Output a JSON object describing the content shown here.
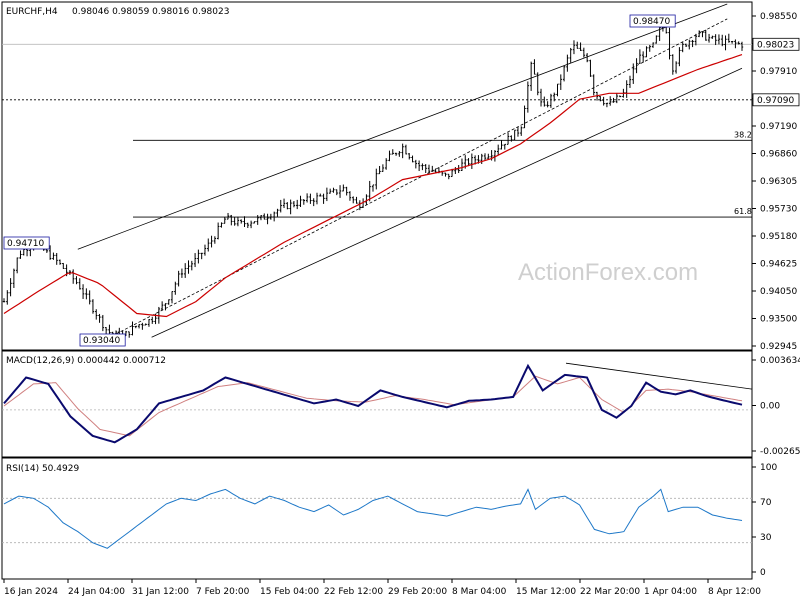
{
  "header": {
    "symbol_tf": "EURCHF,H4",
    "ohlc": "0.98046 0.98059 0.98016 0.98023"
  },
  "watermark": "ActionForex.com",
  "colors": {
    "candles": "#000000",
    "ma": "#cc0000",
    "macd_main": "#0a0a6e",
    "macd_signal": "#d08080",
    "rsi": "#1e78c8",
    "grid": "#b0b0b0",
    "frame": "#000000"
  },
  "chart_data": [
    {
      "type": "candlestick",
      "title": "EURCHF,H4",
      "ylim": [
        0.9292,
        0.987
      ],
      "y_ticks": [
        "0.98550",
        "0.98230",
        "0.97910",
        "0.97510",
        "0.97190",
        "0.96860",
        "0.96305",
        "0.95730",
        "0.95180",
        "0.94625",
        "0.94050",
        "0.93500",
        "0.92945"
      ],
      "x_ticks": [
        "16 Jan 2024",
        "24 Jan 04:00",
        "31 Jan 12:00",
        "7 Feb 20:00",
        "15 Feb 04:00",
        "22 Feb 12:00",
        "29 Feb 20:00",
        "8 Mar 04:00",
        "15 Mar 12:00",
        "22 Mar 20:00",
        "1 Apr 04:00",
        "8 Apr 12:00"
      ],
      "price_labels": {
        "current": "0.98023",
        "level": "0.97090",
        "high": "0.98470",
        "low": "0.93040",
        "prior_high": "0.94710"
      },
      "fib_levels": [
        {
          "label": "38.2",
          "value": 0.9641
        },
        {
          "label": "61.8",
          "value": 0.9512
        }
      ],
      "channel": {
        "upper": [
          [
            0.1,
            0.9458
          ],
          [
            0.98,
            0.987
          ]
        ],
        "lower": [
          [
            0.2,
            0.931
          ],
          [
            1.0,
            0.9762
          ]
        ]
      },
      "trendline": [
        [
          0.14,
          0.9308
        ],
        [
          0.98,
          0.9845
        ]
      ],
      "series": [
        {
          "name": "price",
          "values": [
            [
              0.0,
              0.937
            ],
            [
              0.02,
              0.945
            ],
            [
              0.04,
              0.947
            ],
            [
              0.07,
              0.944
            ],
            [
              0.1,
              0.94
            ],
            [
              0.12,
              0.936
            ],
            [
              0.14,
              0.932
            ],
            [
              0.16,
              0.931
            ],
            [
              0.18,
              0.933
            ],
            [
              0.2,
              0.934
            ],
            [
              0.22,
              0.937
            ],
            [
              0.24,
              0.942
            ],
            [
              0.26,
              0.944
            ],
            [
              0.28,
              0.947
            ],
            [
              0.3,
              0.951
            ],
            [
              0.32,
              0.95
            ],
            [
              0.35,
              0.951
            ],
            [
              0.38,
              0.953
            ],
            [
              0.41,
              0.954
            ],
            [
              0.44,
              0.955
            ],
            [
              0.46,
              0.956
            ],
            [
              0.48,
              0.953
            ],
            [
              0.5,
              0.957
            ],
            [
              0.52,
              0.961
            ],
            [
              0.54,
              0.963
            ],
            [
              0.56,
              0.96
            ],
            [
              0.58,
              0.959
            ],
            [
              0.6,
              0.958
            ],
            [
              0.62,
              0.96
            ],
            [
              0.64,
              0.961
            ],
            [
              0.66,
              0.962
            ],
            [
              0.68,
              0.964
            ],
            [
              0.7,
              0.966
            ],
            [
              0.715,
              0.977
            ],
            [
              0.73,
              0.969
            ],
            [
              0.75,
              0.973
            ],
            [
              0.77,
              0.98
            ],
            [
              0.79,
              0.978
            ],
            [
              0.8,
              0.972
            ],
            [
              0.82,
              0.97
            ],
            [
              0.84,
              0.972
            ],
            [
              0.86,
              0.978
            ],
            [
              0.88,
              0.98
            ],
            [
              0.895,
              0.9847
            ],
            [
              0.905,
              0.976
            ],
            [
              0.92,
              0.98
            ],
            [
              0.94,
              0.982
            ],
            [
              0.96,
              0.981
            ],
            [
              0.98,
              0.9805
            ],
            [
              1.0,
              0.9802
            ]
          ]
        },
        {
          "name": "ma",
          "values": [
            [
              0.0,
              0.935
            ],
            [
              0.05,
              0.939
            ],
            [
              0.09,
              0.942
            ],
            [
              0.13,
              0.94
            ],
            [
              0.18,
              0.935
            ],
            [
              0.22,
              0.9345
            ],
            [
              0.26,
              0.937
            ],
            [
              0.3,
              0.941
            ],
            [
              0.34,
              0.944
            ],
            [
              0.38,
              0.947
            ],
            [
              0.42,
              0.9495
            ],
            [
              0.46,
              0.952
            ],
            [
              0.5,
              0.9545
            ],
            [
              0.54,
              0.9575
            ],
            [
              0.58,
              0.9585
            ],
            [
              0.62,
              0.9595
            ],
            [
              0.66,
              0.961
            ],
            [
              0.7,
              0.9635
            ],
            [
              0.74,
              0.967
            ],
            [
              0.78,
              0.971
            ],
            [
              0.82,
              0.972
            ],
            [
              0.86,
              0.972
            ],
            [
              0.9,
              0.974
            ],
            [
              0.94,
              0.976
            ],
            [
              1.0,
              0.9785
            ]
          ]
        }
      ]
    },
    {
      "type": "line",
      "title": "MACD(12,26,9) 0.000442 0.000712",
      "ylim": [
        -0.0034,
        0.004
      ],
      "y_ticks": [
        "0.003634",
        "0.00",
        "-0.002652"
      ],
      "series": [
        {
          "name": "main",
          "values": [
            [
              0.0,
              0.0005
            ],
            [
              0.03,
              0.0025
            ],
            [
              0.06,
              0.002
            ],
            [
              0.09,
              -0.0005
            ],
            [
              0.12,
              -0.002
            ],
            [
              0.15,
              -0.0025
            ],
            [
              0.18,
              -0.0015
            ],
            [
              0.21,
              0.0005
            ],
            [
              0.24,
              0.001
            ],
            [
              0.27,
              0.0015
            ],
            [
              0.3,
              0.0025
            ],
            [
              0.33,
              0.002
            ],
            [
              0.36,
              0.0015
            ],
            [
              0.39,
              0.001
            ],
            [
              0.42,
              0.0005
            ],
            [
              0.45,
              0.0008
            ],
            [
              0.48,
              0.0003
            ],
            [
              0.51,
              0.0015
            ],
            [
              0.54,
              0.001
            ],
            [
              0.57,
              0.0006
            ],
            [
              0.6,
              0.0002
            ],
            [
              0.63,
              0.0007
            ],
            [
              0.66,
              0.0008
            ],
            [
              0.69,
              0.001
            ],
            [
              0.71,
              0.0034
            ],
            [
              0.73,
              0.0015
            ],
            [
              0.76,
              0.0027
            ],
            [
              0.79,
              0.0025
            ],
            [
              0.81,
              0.0
            ],
            [
              0.83,
              -0.0006
            ],
            [
              0.85,
              0.0003
            ],
            [
              0.87,
              0.0021
            ],
            [
              0.89,
              0.0014
            ],
            [
              0.91,
              0.0012
            ],
            [
              0.93,
              0.0015
            ],
            [
              0.95,
              0.0011
            ],
            [
              0.97,
              0.0008
            ],
            [
              1.0,
              0.0004
            ]
          ]
        },
        {
          "name": "signal",
          "values": [
            [
              0.0,
              0.0003
            ],
            [
              0.04,
              0.002
            ],
            [
              0.07,
              0.0021
            ],
            [
              0.1,
              0.0001
            ],
            [
              0.13,
              -0.0015
            ],
            [
              0.17,
              -0.002
            ],
            [
              0.21,
              -0.0002
            ],
            [
              0.25,
              0.0008
            ],
            [
              0.29,
              0.0018
            ],
            [
              0.33,
              0.0021
            ],
            [
              0.37,
              0.0015
            ],
            [
              0.41,
              0.0009
            ],
            [
              0.45,
              0.0007
            ],
            [
              0.49,
              0.0006
            ],
            [
              0.53,
              0.0011
            ],
            [
              0.57,
              0.0008
            ],
            [
              0.61,
              0.0004
            ],
            [
              0.65,
              0.0007
            ],
            [
              0.69,
              0.001
            ],
            [
              0.72,
              0.0026
            ],
            [
              0.75,
              0.002
            ],
            [
              0.78,
              0.0025
            ],
            [
              0.81,
              0.0008
            ],
            [
              0.84,
              -0.0002
            ],
            [
              0.87,
              0.0015
            ],
            [
              0.9,
              0.0016
            ],
            [
              0.93,
              0.0014
            ],
            [
              0.96,
              0.0011
            ],
            [
              1.0,
              0.0007
            ]
          ]
        }
      ]
    },
    {
      "type": "line",
      "title": "RSI(14) 50.4929",
      "ylim": [
        0,
        100
      ],
      "y_ticks": [
        "100",
        "70",
        "30",
        "0"
      ],
      "series": [
        {
          "name": "rsi",
          "values": [
            [
              0.0,
              65
            ],
            [
              0.02,
              72
            ],
            [
              0.04,
              70
            ],
            [
              0.06,
              62
            ],
            [
              0.08,
              48
            ],
            [
              0.1,
              40
            ],
            [
              0.12,
              30
            ],
            [
              0.14,
              25
            ],
            [
              0.16,
              35
            ],
            [
              0.18,
              45
            ],
            [
              0.2,
              55
            ],
            [
              0.22,
              65
            ],
            [
              0.24,
              70
            ],
            [
              0.26,
              68
            ],
            [
              0.28,
              74
            ],
            [
              0.3,
              78
            ],
            [
              0.32,
              70
            ],
            [
              0.34,
              65
            ],
            [
              0.36,
              72
            ],
            [
              0.38,
              68
            ],
            [
              0.4,
              62
            ],
            [
              0.42,
              58
            ],
            [
              0.44,
              64
            ],
            [
              0.46,
              55
            ],
            [
              0.48,
              60
            ],
            [
              0.5,
              68
            ],
            [
              0.52,
              72
            ],
            [
              0.54,
              65
            ],
            [
              0.56,
              58
            ],
            [
              0.58,
              56
            ],
            [
              0.6,
              54
            ],
            [
              0.62,
              58
            ],
            [
              0.64,
              62
            ],
            [
              0.66,
              60
            ],
            [
              0.68,
              63
            ],
            [
              0.7,
              65
            ],
            [
              0.71,
              78
            ],
            [
              0.72,
              60
            ],
            [
              0.74,
              70
            ],
            [
              0.76,
              72
            ],
            [
              0.78,
              64
            ],
            [
              0.8,
              42
            ],
            [
              0.82,
              38
            ],
            [
              0.84,
              40
            ],
            [
              0.86,
              62
            ],
            [
              0.88,
              72
            ],
            [
              0.89,
              78
            ],
            [
              0.9,
              58
            ],
            [
              0.92,
              62
            ],
            [
              0.94,
              62
            ],
            [
              0.96,
              55
            ],
            [
              0.98,
              52
            ],
            [
              1.0,
              50
            ]
          ]
        }
      ]
    }
  ]
}
